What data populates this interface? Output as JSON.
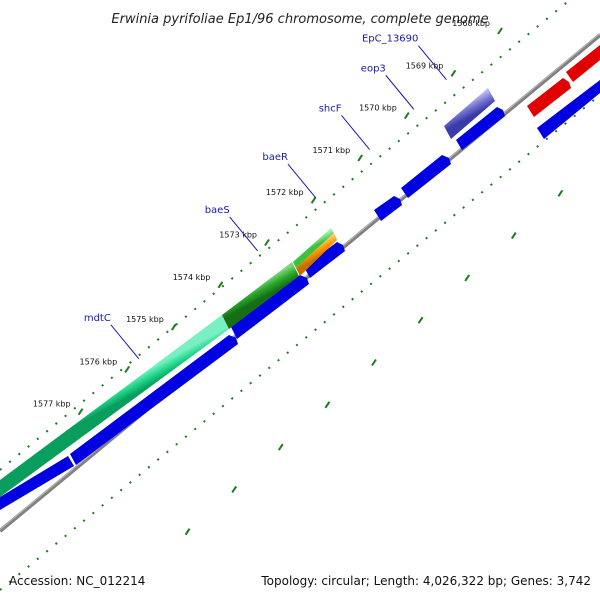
{
  "title": "Erwinia pyrifoliae Ep1/96 chromosome, complete genome",
  "footer": {
    "accession": "Accession: NC_012214",
    "summary": "Topology: circular; Length: 4,026,322 bp; Genes: 3,742"
  },
  "colors": {
    "backbone": "#808080",
    "tick": "#1e7a1e",
    "forward_gene": "#e00000",
    "reverse_gene": "#0000e0",
    "label_line": "#1a1aa8",
    "label_text": "#1a1aa8"
  },
  "ticks": [
    {
      "kbp": 1568,
      "label": "1568 kbp"
    },
    {
      "kbp": 1569,
      "label": "1569 kbp"
    },
    {
      "kbp": 1570,
      "label": "1570 kbp"
    },
    {
      "kbp": 1571,
      "label": "1571 kbp"
    },
    {
      "kbp": 1572,
      "label": "1572 kbp"
    },
    {
      "kbp": 1573,
      "label": "1573 kbp"
    },
    {
      "kbp": 1574,
      "label": "1574 kbp"
    },
    {
      "kbp": 1575,
      "label": "1575 kbp"
    },
    {
      "kbp": 1576,
      "label": "1576 kbp"
    },
    {
      "kbp": 1577,
      "label": "1577 kbp"
    }
  ],
  "gene_labels": [
    {
      "name": "EpC_13690",
      "kbp": 1569.15
    },
    {
      "name": "eop3",
      "kbp": 1569.85
    },
    {
      "name": "shcF",
      "kbp": 1570.8
    },
    {
      "name": "baeR",
      "kbp": 1571.95
    },
    {
      "name": "baeS",
      "kbp": 1573.2
    },
    {
      "name": "mdtC",
      "kbp": 1575.75
    }
  ]
}
